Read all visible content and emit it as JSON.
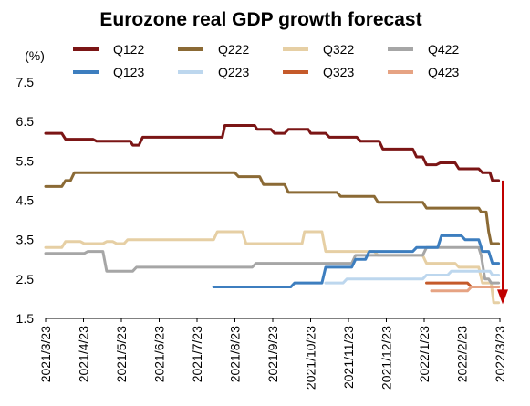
{
  "chart_data": {
    "type": "line",
    "title": "Eurozone real GDP growth forecast",
    "unit_label": "(%)",
    "xlabel": "",
    "ylabel": "",
    "ylim": [
      1.5,
      7.5
    ],
    "yticks": [
      "7.5",
      "6.5",
      "5.5",
      "4.5",
      "3.5",
      "2.5",
      "1.5"
    ],
    "ytick_values": [
      7.5,
      6.5,
      5.5,
      4.5,
      3.5,
      2.5,
      1.5
    ],
    "xtick_labels": [
      "2021/3/23",
      "2021/4/23",
      "2021/5/23",
      "2021/6/23",
      "2021/7/23",
      "2021/8/23",
      "2021/9/23",
      "2021/10/23",
      "2021/11/23",
      "2021/12/23",
      "2022/1/23",
      "2022/2/23",
      "2022/3/23"
    ],
    "xlim": [
      "2021-03-23",
      "2022-03-23"
    ],
    "grid": false,
    "legend_position": "top",
    "series": [
      {
        "name": "Q122",
        "color": "#7B1515",
        "points": [
          [
            "2021-03-23",
            6.2
          ],
          [
            "2021-04-05",
            6.2
          ],
          [
            "2021-04-08",
            6.05
          ],
          [
            "2021-04-30",
            6.05
          ],
          [
            "2021-05-03",
            6.0
          ],
          [
            "2021-05-30",
            6.0
          ],
          [
            "2021-06-01",
            5.9
          ],
          [
            "2021-06-06",
            5.9
          ],
          [
            "2021-06-09",
            6.1
          ],
          [
            "2021-08-12",
            6.1
          ],
          [
            "2021-08-14",
            6.4
          ],
          [
            "2021-09-07",
            6.4
          ],
          [
            "2021-09-09",
            6.3
          ],
          [
            "2021-09-20",
            6.3
          ],
          [
            "2021-09-23",
            6.2
          ],
          [
            "2021-10-01",
            6.2
          ],
          [
            "2021-10-04",
            6.3
          ],
          [
            "2021-10-20",
            6.3
          ],
          [
            "2021-10-22",
            6.2
          ],
          [
            "2021-11-03",
            6.2
          ],
          [
            "2021-11-06",
            6.1
          ],
          [
            "2021-11-28",
            6.1
          ],
          [
            "2021-12-01",
            6.0
          ],
          [
            "2021-12-16",
            6.0
          ],
          [
            "2021-12-19",
            5.8
          ],
          [
            "2022-01-12",
            5.8
          ],
          [
            "2022-01-15",
            5.6
          ],
          [
            "2022-01-20",
            5.6
          ],
          [
            "2022-01-23",
            5.4
          ],
          [
            "2022-01-31",
            5.4
          ],
          [
            "2022-02-03",
            5.45
          ],
          [
            "2022-02-15",
            5.45
          ],
          [
            "2022-02-18",
            5.3
          ],
          [
            "2022-03-06",
            5.3
          ],
          [
            "2022-03-09",
            5.2
          ],
          [
            "2022-03-15",
            5.2
          ],
          [
            "2022-03-17",
            5.0
          ],
          [
            "2022-03-22",
            5.0
          ]
        ]
      },
      {
        "name": "Q222",
        "color": "#8B6A35",
        "points": [
          [
            "2021-03-23",
            4.85
          ],
          [
            "2021-04-05",
            4.85
          ],
          [
            "2021-04-08",
            5.0
          ],
          [
            "2021-04-12",
            5.0
          ],
          [
            "2021-04-15",
            5.2
          ],
          [
            "2021-08-22",
            5.2
          ],
          [
            "2021-08-25",
            5.1
          ],
          [
            "2021-09-11",
            5.1
          ],
          [
            "2021-09-14",
            4.9
          ],
          [
            "2021-10-01",
            4.9
          ],
          [
            "2021-10-04",
            4.7
          ],
          [
            "2021-11-12",
            4.7
          ],
          [
            "2021-11-15",
            4.6
          ],
          [
            "2021-12-12",
            4.6
          ],
          [
            "2021-12-15",
            4.45
          ],
          [
            "2022-01-20",
            4.45
          ],
          [
            "2022-01-23",
            4.3
          ],
          [
            "2022-03-06",
            4.3
          ],
          [
            "2022-03-08",
            4.2
          ],
          [
            "2022-03-12",
            4.2
          ],
          [
            "2022-03-14",
            3.7
          ],
          [
            "2022-03-16",
            3.4
          ],
          [
            "2022-03-22",
            3.4
          ]
        ]
      },
      {
        "name": "Q322",
        "color": "#E6CFA4",
        "points": [
          [
            "2021-03-23",
            3.3
          ],
          [
            "2021-04-05",
            3.3
          ],
          [
            "2021-04-08",
            3.45
          ],
          [
            "2021-04-20",
            3.45
          ],
          [
            "2021-04-23",
            3.4
          ],
          [
            "2021-05-08",
            3.4
          ],
          [
            "2021-05-11",
            3.45
          ],
          [
            "2021-05-16",
            3.45
          ],
          [
            "2021-05-19",
            3.4
          ],
          [
            "2021-05-25",
            3.4
          ],
          [
            "2021-05-28",
            3.5
          ],
          [
            "2021-08-05",
            3.5
          ],
          [
            "2021-08-08",
            3.7
          ],
          [
            "2021-08-28",
            3.7
          ],
          [
            "2021-08-31",
            3.4
          ],
          [
            "2021-10-15",
            3.4
          ],
          [
            "2021-10-17",
            3.7
          ],
          [
            "2021-10-31",
            3.7
          ],
          [
            "2021-11-03",
            3.2
          ],
          [
            "2021-12-12",
            3.2
          ],
          [
            "2021-12-15",
            3.1
          ],
          [
            "2022-01-20",
            3.1
          ],
          [
            "2022-01-23",
            2.9
          ],
          [
            "2022-02-15",
            2.9
          ],
          [
            "2022-02-18",
            2.8
          ],
          [
            "2022-03-06",
            2.8
          ],
          [
            "2022-03-09",
            2.4
          ],
          [
            "2022-03-16",
            2.4
          ],
          [
            "2022-03-18",
            1.9
          ],
          [
            "2022-03-22",
            1.9
          ]
        ]
      },
      {
        "name": "Q422",
        "color": "#A6A6A6",
        "points": [
          [
            "2021-03-23",
            3.15
          ],
          [
            "2021-04-23",
            3.15
          ],
          [
            "2021-04-26",
            3.2
          ],
          [
            "2021-05-08",
            3.2
          ],
          [
            "2021-05-11",
            2.7
          ],
          [
            "2021-06-01",
            2.7
          ],
          [
            "2021-06-04",
            2.8
          ],
          [
            "2021-09-05",
            2.8
          ],
          [
            "2021-09-08",
            2.9
          ],
          [
            "2021-11-24",
            2.9
          ],
          [
            "2021-11-27",
            3.1
          ],
          [
            "2022-01-20",
            3.1
          ],
          [
            "2022-01-23",
            3.3
          ],
          [
            "2022-03-06",
            3.3
          ],
          [
            "2022-03-08",
            3.1
          ],
          [
            "2022-03-11",
            2.5
          ],
          [
            "2022-03-14",
            2.5
          ],
          [
            "2022-03-16",
            2.4
          ],
          [
            "2022-03-22",
            2.4
          ]
        ]
      },
      {
        "name": "Q123",
        "color": "#3D7EBF",
        "points": [
          [
            "2021-08-05",
            2.3
          ],
          [
            "2021-10-06",
            2.3
          ],
          [
            "2021-10-09",
            2.4
          ],
          [
            "2021-10-31",
            2.4
          ],
          [
            "2021-11-03",
            2.8
          ],
          [
            "2021-11-24",
            2.8
          ],
          [
            "2021-11-27",
            3.0
          ],
          [
            "2021-12-05",
            3.0
          ],
          [
            "2021-12-08",
            3.2
          ],
          [
            "2022-01-12",
            3.2
          ],
          [
            "2022-01-15",
            3.3
          ],
          [
            "2022-02-01",
            3.3
          ],
          [
            "2022-02-04",
            3.6
          ],
          [
            "2022-02-20",
            3.6
          ],
          [
            "2022-02-23",
            3.5
          ],
          [
            "2022-03-06",
            3.5
          ],
          [
            "2022-03-09",
            3.2
          ],
          [
            "2022-03-14",
            3.2
          ],
          [
            "2022-03-17",
            2.9
          ],
          [
            "2022-03-22",
            2.9
          ]
        ]
      },
      {
        "name": "Q223",
        "color": "#BDD7EE",
        "points": [
          [
            "2021-11-03",
            2.4
          ],
          [
            "2021-11-17",
            2.4
          ],
          [
            "2021-11-20",
            2.5
          ],
          [
            "2022-01-20",
            2.5
          ],
          [
            "2022-01-23",
            2.6
          ],
          [
            "2022-02-09",
            2.6
          ],
          [
            "2022-02-12",
            2.7
          ],
          [
            "2022-03-15",
            2.7
          ],
          [
            "2022-03-17",
            2.6
          ],
          [
            "2022-03-22",
            2.6
          ]
        ]
      },
      {
        "name": "Q323",
        "color": "#C55A2A",
        "points": [
          [
            "2022-01-23",
            2.4
          ],
          [
            "2022-02-25",
            2.4
          ],
          [
            "2022-02-28",
            2.3
          ],
          [
            "2022-03-22",
            2.3
          ]
        ]
      },
      {
        "name": "Q423",
        "color": "#E6A383",
        "points": [
          [
            "2022-01-27",
            2.2
          ],
          [
            "2022-02-25",
            2.2
          ],
          [
            "2022-02-28",
            2.3
          ],
          [
            "2022-03-22",
            2.3
          ]
        ]
      }
    ],
    "annotation": {
      "type": "down-arrow",
      "color": "#C00000",
      "x": "2022-03-23",
      "y_from": 5.0,
      "y_to": 2.0
    }
  }
}
